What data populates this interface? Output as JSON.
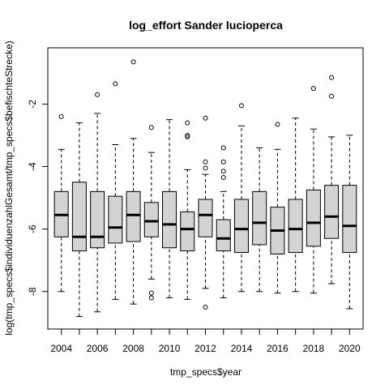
{
  "chart_data": {
    "type": "boxplot",
    "title": "log_effort Sander lucioperca",
    "xlabel": "tmp_specs$year",
    "ylabel": "log(tmp_specs$individuenzahlGesamt/tmp_specs$befischteStrecke)",
    "ylim": [
      -9.2,
      -0.2
    ],
    "y_ticks": [
      -8,
      -6,
      -4,
      -2
    ],
    "x_tick_labels": [
      "2004",
      "2006",
      "2008",
      "2010",
      "2012",
      "2014",
      "2016",
      "2018",
      "2020"
    ],
    "grid": false,
    "fill_color": "#d3d3d3",
    "boxes": [
      {
        "year": "2004",
        "whisker_low": -8.0,
        "q1": -6.25,
        "median": -5.55,
        "q3": -4.8,
        "whisker_high": -3.45,
        "outliers": [
          -2.4
        ]
      },
      {
        "year": "2005",
        "whisker_low": -8.8,
        "q1": -6.7,
        "median": -6.25,
        "q3": -4.5,
        "whisker_high": -2.6,
        "outliers": []
      },
      {
        "year": "2006",
        "whisker_low": -8.65,
        "q1": -6.6,
        "median": -6.25,
        "q3": -4.8,
        "whisker_high": -2.3,
        "outliers": [
          -1.7
        ]
      },
      {
        "year": "2007",
        "whisker_low": -8.25,
        "q1": -6.45,
        "median": -5.95,
        "q3": -4.95,
        "whisker_high": -3.3,
        "outliers": [
          -1.35
        ]
      },
      {
        "year": "2008",
        "whisker_low": -8.4,
        "q1": -6.4,
        "median": -5.55,
        "q3": -4.8,
        "whisker_high": -3.1,
        "outliers": [
          -0.65
        ]
      },
      {
        "year": "2009",
        "whisker_low": -7.6,
        "q1": -6.25,
        "median": -5.75,
        "q3": -5.15,
        "whisker_high": -3.55,
        "outliers": [
          -2.75,
          -8.05,
          -8.2
        ]
      },
      {
        "year": "2010",
        "whisker_low": -8.2,
        "q1": -6.6,
        "median": -5.85,
        "q3": -4.8,
        "whisker_high": -2.5,
        "outliers": []
      },
      {
        "year": "2011",
        "whisker_low": -8.25,
        "q1": -6.7,
        "median": -6.0,
        "q3": -5.45,
        "whisker_high": -4.1,
        "outliers": [
          -2.6,
          -3.0,
          -3.05
        ]
      },
      {
        "year": "2012",
        "whisker_low": -7.9,
        "q1": -6.25,
        "median": -5.55,
        "q3": -5.05,
        "whisker_high": -4.25,
        "outliers": [
          -2.45,
          -3.85,
          -4.05,
          -8.5
        ]
      },
      {
        "year": "2013",
        "whisker_low": -8.2,
        "q1": -6.7,
        "median": -6.3,
        "q3": -5.7,
        "whisker_high": -4.8,
        "outliers": [
          -3.4,
          -3.85,
          -4.15,
          -4.35
        ]
      },
      {
        "year": "2014",
        "whisker_low": -8.0,
        "q1": -6.75,
        "median": -6.0,
        "q3": -5.05,
        "whisker_high": -2.7,
        "outliers": [
          -2.05
        ]
      },
      {
        "year": "2015",
        "whisker_low": -8.0,
        "q1": -6.5,
        "median": -5.8,
        "q3": -4.8,
        "whisker_high": -3.4,
        "outliers": []
      },
      {
        "year": "2016",
        "whisker_low": -8.05,
        "q1": -6.8,
        "median": -6.05,
        "q3": -5.3,
        "whisker_high": -3.45,
        "outliers": [
          -2.65
        ]
      },
      {
        "year": "2017",
        "whisker_low": -8.0,
        "q1": -6.75,
        "median": -6.0,
        "q3": -5.05,
        "whisker_high": -2.45,
        "outliers": []
      },
      {
        "year": "2018",
        "whisker_low": -8.05,
        "q1": -6.55,
        "median": -5.8,
        "q3": -4.75,
        "whisker_high": -2.8,
        "outliers": [
          -1.5
        ]
      },
      {
        "year": "2019",
        "whisker_low": -7.75,
        "q1": -6.3,
        "median": -5.6,
        "q3": -4.6,
        "whisker_high": -3.05,
        "outliers": [
          -1.75,
          -1.15
        ]
      },
      {
        "year": "2020",
        "whisker_low": -8.55,
        "q1": -6.75,
        "median": -5.9,
        "q3": -4.6,
        "whisker_high": -3.0,
        "outliers": []
      }
    ]
  }
}
